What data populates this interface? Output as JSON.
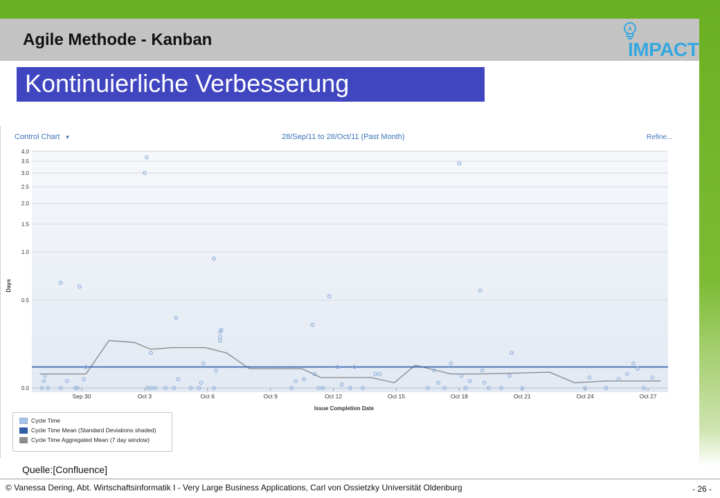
{
  "header": {
    "title": "Agile Methode - Kanban",
    "logo_text": "IMPACT",
    "logo_icon": "lightbulb-icon"
  },
  "subtitle": "Kontinuierliche Verbesserung",
  "toolbar": {
    "control_chart_label": "Control Chart",
    "date_range": "28/Sep/11 to 28/Oct/11 (Past Month)",
    "refine_label": "Refine..."
  },
  "colors": {
    "green": "#6ab023",
    "subtitle_bg": "#4045c0",
    "link": "#3b73b9",
    "point": "#8fb0da",
    "mean": "#2e5da8",
    "aggregated": "#8c8c8c"
  },
  "chart_data": {
    "type": "scatter",
    "xlabel": "Issue Completion Date",
    "ylabel": "Days",
    "x_ticks": [
      "Sep 30",
      "Oct 3",
      "Oct 6",
      "Oct 9",
      "Oct 12",
      "Oct 15",
      "Oct 18",
      "Oct 21",
      "Oct 24",
      "Oct 27"
    ],
    "y_ticks": [
      0.0,
      0.5,
      1.0,
      1.5,
      2.0,
      2.5,
      3.0,
      3.5,
      4.0
    ],
    "y_scale": "non-linear (compressed at top)",
    "x_range": [
      "Sep 28",
      "Oct 28"
    ],
    "y_range": [
      0,
      4.0
    ],
    "grid": true,
    "legend_position": "bottom-left",
    "mean_value": 0.12,
    "series": [
      {
        "name": "Cycle Time",
        "points": [
          {
            "x": "Sep 28.1",
            "y": 0.0
          },
          {
            "x": "Sep 28.2",
            "y": 0.04
          },
          {
            "x": "Sep 28.25",
            "y": 0.07
          },
          {
            "x": "Sep 28.4",
            "y": 0.0
          },
          {
            "x": "Sep 29.0",
            "y": 0.0
          },
          {
            "x": "Sep 29.0",
            "y": 0.68
          },
          {
            "x": "Sep 29.3",
            "y": 0.04
          },
          {
            "x": "Sep 29.7",
            "y": 0.0
          },
          {
            "x": "Sep 29.8",
            "y": 0.0
          },
          {
            "x": "Sep 29.9",
            "y": 0.64
          },
          {
            "x": "Sep 30.1",
            "y": 0.05
          },
          {
            "x": "Sep 30.2",
            "y": 0.12
          },
          {
            "x": "Oct 3.0",
            "y": 3.0
          },
          {
            "x": "Oct 3.1",
            "y": 3.7
          },
          {
            "x": "Oct 3.15",
            "y": 0.0
          },
          {
            "x": "Oct 3.3",
            "y": 0.0
          },
          {
            "x": "Oct 3.3",
            "y": 0.2
          },
          {
            "x": "Oct 3.5",
            "y": 0.0
          },
          {
            "x": "Oct 4.0",
            "y": 0.0
          },
          {
            "x": "Oct 4.4",
            "y": 0.0
          },
          {
            "x": "Oct 4.5",
            "y": 0.4
          },
          {
            "x": "Oct 4.6",
            "y": 0.05
          },
          {
            "x": "Oct 5.2",
            "y": 0.0
          },
          {
            "x": "Oct 5.6",
            "y": 0.0
          },
          {
            "x": "Oct 5.7",
            "y": 0.03
          },
          {
            "x": "Oct 5.8",
            "y": 0.14
          },
          {
            "x": "Oct 6.3",
            "y": 0.93
          },
          {
            "x": "Oct 6.3",
            "y": 0.0
          },
          {
            "x": "Oct 6.4",
            "y": 0.1
          },
          {
            "x": "Oct 6.6",
            "y": 0.27
          },
          {
            "x": "Oct 6.6",
            "y": 0.29
          },
          {
            "x": "Oct 6.6",
            "y": 0.32
          },
          {
            "x": "Oct 6.65",
            "y": 0.33
          },
          {
            "x": "Oct 10.0",
            "y": 0.0
          },
          {
            "x": "Oct 10.2",
            "y": 0.04
          },
          {
            "x": "Oct 10.6",
            "y": 0.05
          },
          {
            "x": "Oct 11.0",
            "y": 0.36
          },
          {
            "x": "Oct 11.1",
            "y": 0.08
          },
          {
            "x": "Oct 11.3",
            "y": 0.0
          },
          {
            "x": "Oct 11.5",
            "y": 0.0
          },
          {
            "x": "Oct 11.8",
            "y": 0.54
          },
          {
            "x": "Oct 12.2",
            "y": 0.12
          },
          {
            "x": "Oct 12.4",
            "y": 0.02
          },
          {
            "x": "Oct 12.8",
            "y": 0.0
          },
          {
            "x": "Oct 13.0",
            "y": 0.12
          },
          {
            "x": "Oct 13.4",
            "y": 0.0
          },
          {
            "x": "Oct 14.0",
            "y": 0.08
          },
          {
            "x": "Oct 14.2",
            "y": 0.08
          },
          {
            "x": "Oct 16.5",
            "y": 0.0
          },
          {
            "x": "Oct 16.8",
            "y": 0.1
          },
          {
            "x": "Oct 17.0",
            "y": 0.03
          },
          {
            "x": "Oct 17.3",
            "y": 0.0
          },
          {
            "x": "Oct 17.6",
            "y": 0.14
          },
          {
            "x": "Oct 18.0",
            "y": 3.4
          },
          {
            "x": "Oct 18.1",
            "y": 0.07
          },
          {
            "x": "Oct 18.3",
            "y": 0.0
          },
          {
            "x": "Oct 18.5",
            "y": 0.04
          },
          {
            "x": "Oct 19.0",
            "y": 0.6
          },
          {
            "x": "Oct 19.1",
            "y": 0.1
          },
          {
            "x": "Oct 19.2",
            "y": 0.03
          },
          {
            "x": "Oct 19.4",
            "y": 0.0
          },
          {
            "x": "Oct 20.0",
            "y": 0.0
          },
          {
            "x": "Oct 20.4",
            "y": 0.07
          },
          {
            "x": "Oct 20.5",
            "y": 0.2
          },
          {
            "x": "Oct 21.0",
            "y": 0.0
          },
          {
            "x": "Oct 24.0",
            "y": 0.0
          },
          {
            "x": "Oct 24.2",
            "y": 0.06
          },
          {
            "x": "Oct 25.0",
            "y": 0.0
          },
          {
            "x": "Oct 25.6",
            "y": 0.05
          },
          {
            "x": "Oct 26.0",
            "y": 0.08
          },
          {
            "x": "Oct 26.3",
            "y": 0.14
          },
          {
            "x": "Oct 26.5",
            "y": 0.11
          },
          {
            "x": "Oct 26.8",
            "y": 0.0
          },
          {
            "x": "Oct 27.2",
            "y": 0.06
          }
        ]
      },
      {
        "name": "Cycle Time Mean (Standard Deviations shaded)",
        "value": 0.12
      },
      {
        "name": "Cycle Time Aggregated Mean (7 day window)",
        "points": [
          {
            "x": "Sep 28",
            "y": 0.08
          },
          {
            "x": "Sep 30.2",
            "y": 0.08
          },
          {
            "x": "Oct 1.3",
            "y": 0.27
          },
          {
            "x": "Oct 2.5",
            "y": 0.26
          },
          {
            "x": "Oct 3.3",
            "y": 0.22
          },
          {
            "x": "Oct 4.3",
            "y": 0.23
          },
          {
            "x": "Oct 5.9",
            "y": 0.23
          },
          {
            "x": "Oct 6.9",
            "y": 0.2
          },
          {
            "x": "Oct 8.0",
            "y": 0.11
          },
          {
            "x": "Oct 10.5",
            "y": 0.11
          },
          {
            "x": "Oct 11.4",
            "y": 0.06
          },
          {
            "x": "Oct 13.8",
            "y": 0.06
          },
          {
            "x": "Oct 14.9",
            "y": 0.03
          },
          {
            "x": "Oct 15.9",
            "y": 0.13
          },
          {
            "x": "Oct 17.6",
            "y": 0.08
          },
          {
            "x": "Oct 19.0",
            "y": 0.08
          },
          {
            "x": "Oct 22.3",
            "y": 0.09
          },
          {
            "x": "Oct 23.5",
            "y": 0.03
          },
          {
            "x": "Oct 25.0",
            "y": 0.04
          },
          {
            "x": "Oct 27.6",
            "y": 0.04
          }
        ]
      }
    ]
  },
  "legend": {
    "items": [
      {
        "label": "Cycle Time",
        "color": "#8fb0da"
      },
      {
        "label": "Cycle Time Mean (Standard Deviations shaded)",
        "color": "#2e5da8"
      },
      {
        "label": "Cycle Time Aggregated Mean (7 day window)",
        "color": "#8c8c8c"
      }
    ]
  },
  "source": "Quelle:[Confluence]",
  "footer": {
    "text": "© Vanessa Dering, Abt. Wirtschaftsinformatik I - Very Large Business Applications, Carl von Ossietzky Universität Oldenburg",
    "page": "- 26 -"
  }
}
